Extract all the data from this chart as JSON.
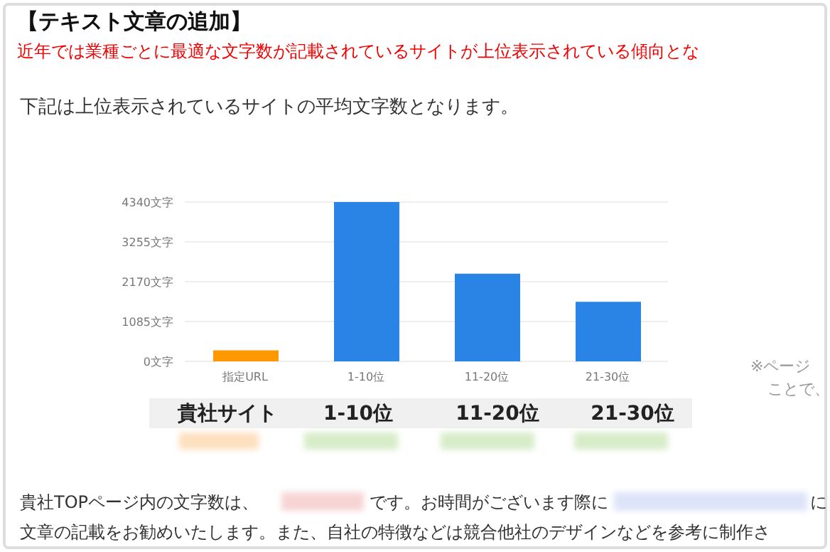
{
  "chart_data": {
    "type": "bar",
    "title": "【テキスト文章の追加】",
    "subtitle": "近年では業種ごとに最適な文字数が記載されているサイトが上位表示されている傾向とな",
    "categories": [
      "指定URL",
      "1-10位",
      "11-20位",
      "21-30位"
    ],
    "values": [
      300,
      4340,
      2390,
      1625
    ],
    "colors": [
      "#ff9800",
      "#2a84e5",
      "#2a84e5",
      "#2a84e5"
    ],
    "ylim": [
      0,
      4340
    ],
    "yticks": [
      {
        "value": 0,
        "label": "0文字"
      },
      {
        "value": 1085,
        "label": "1085文字"
      },
      {
        "value": 2170,
        "label": "2170文字"
      },
      {
        "value": 3255,
        "label": "3255文字"
      },
      {
        "value": 4340,
        "label": "4340文字"
      }
    ],
    "grid": "y",
    "annotations": [
      "下記は上位表示されているサイトの平均文字数となります。",
      "貴社サイト",
      "1-10位",
      "11-20位",
      "21-30位",
      "※ページ",
      "ことで、",
      "貴社TOPページ内の文字数は、",
      "です。お時間がございます際に",
      "に",
      "文章の記載をお勧めいたします。また、自社の特徴などは競合他社のデザインなどを参考に制作さ"
    ]
  }
}
